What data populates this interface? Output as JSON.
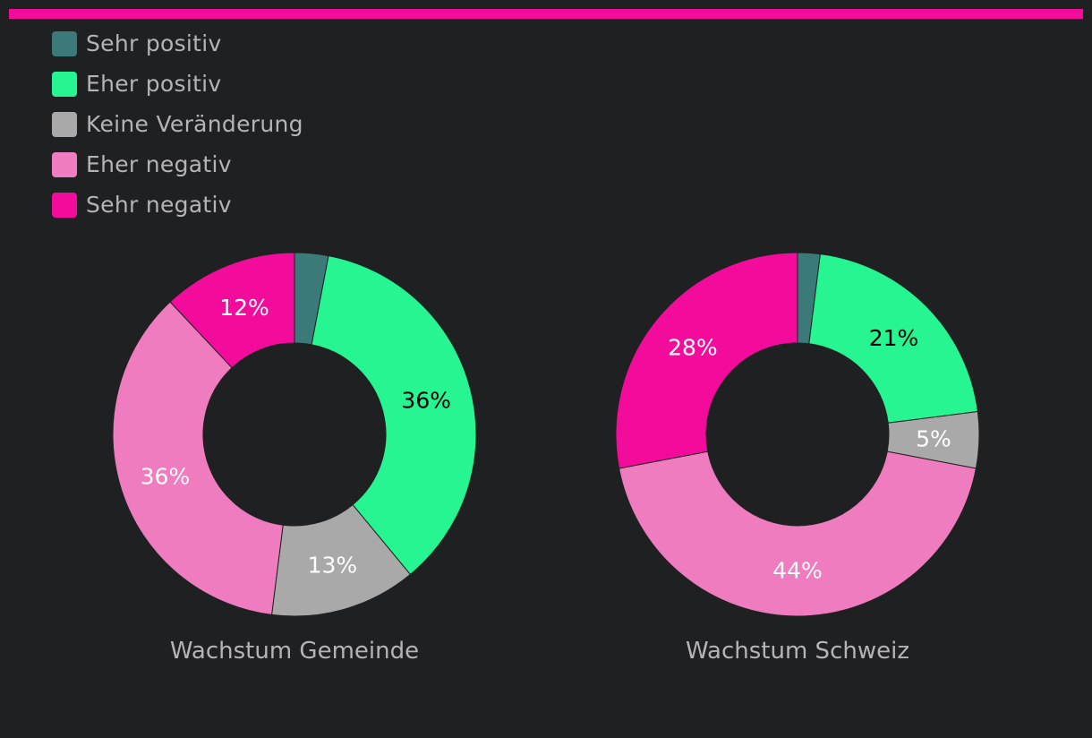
{
  "accent_color": "#f30c9c",
  "legend": [
    {
      "label": "Sehr positiv",
      "color": "#3b7a78"
    },
    {
      "label": "Eher positiv",
      "color": "#27f591"
    },
    {
      "label": "Keine Veränderung",
      "color": "#a9a9a9"
    },
    {
      "label": "Eher negativ",
      "color": "#ee7cbf"
    },
    {
      "label": "Sehr negativ",
      "color": "#f30c9c"
    }
  ],
  "chart_data": [
    {
      "type": "pie",
      "style": "donut",
      "title": "Wachstum Gemeinde",
      "categories": [
        "Sehr positiv",
        "Eher positiv",
        "Keine Veränderung",
        "Eher negativ",
        "Sehr negativ"
      ],
      "values": [
        3,
        36,
        13,
        36,
        12
      ],
      "labels": [
        "",
        "36%",
        "13%",
        "36%",
        "12%"
      ],
      "label_colors": [
        "",
        "#000000",
        "#ffffff",
        "#ffffff",
        "#ffffff"
      ]
    },
    {
      "type": "pie",
      "style": "donut",
      "title": "Wachstum Schweiz",
      "categories": [
        "Sehr positiv",
        "Eher positiv",
        "Keine Veränderung",
        "Eher negativ",
        "Sehr negativ"
      ],
      "values": [
        2,
        21,
        5,
        44,
        28
      ],
      "labels": [
        "",
        "21%",
        "5%",
        "44%",
        "28%"
      ],
      "label_colors": [
        "",
        "#000000",
        "#ffffff",
        "#ffffff",
        "#ffffff"
      ]
    }
  ]
}
